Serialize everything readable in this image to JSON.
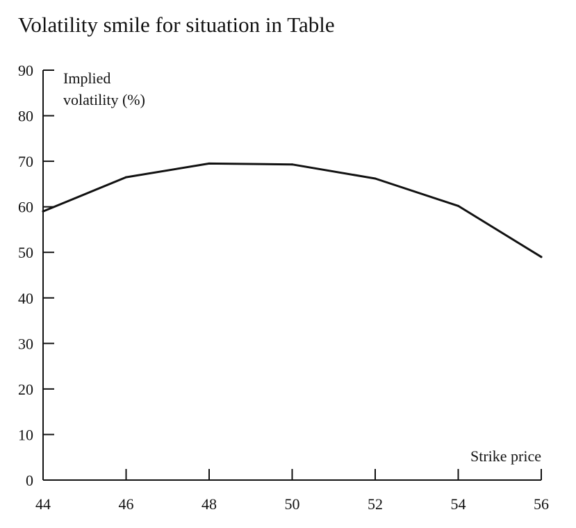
{
  "chart_data": {
    "type": "line",
    "title": "Volatility smile for situation in Table",
    "ylabel_lines": [
      "Implied",
      "volatility (%)"
    ],
    "xlabel": "Strike price",
    "x": [
      44,
      46,
      48,
      50,
      52,
      54,
      56
    ],
    "series": [
      {
        "values": [
          59,
          66.5,
          69.5,
          69.3,
          66.2,
          60.2,
          49
        ]
      }
    ],
    "xlim": [
      44,
      56
    ],
    "ylim": [
      0,
      90
    ],
    "xticks": [
      44,
      46,
      48,
      50,
      52,
      54,
      56
    ],
    "yticks": [
      0,
      10,
      20,
      30,
      40,
      50,
      60,
      70,
      80,
      90
    ],
    "grid": false,
    "legend": "none",
    "line_color": "#111111",
    "axis_color": "#111111"
  }
}
